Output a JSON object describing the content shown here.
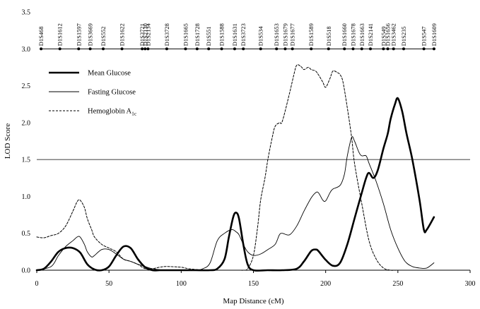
{
  "chart_data": {
    "type": "line",
    "title": "",
    "xlabel": "Map Distance (cM)",
    "ylabel": "LOD Score",
    "xlim": [
      0,
      300
    ],
    "ylim": [
      0,
      3.5
    ],
    "x_ticks": [
      0,
      50,
      100,
      150,
      200,
      250,
      300
    ],
    "y_ticks": [
      0.0,
      0.5,
      1.0,
      1.5,
      2.0,
      2.5,
      3.0,
      3.5
    ],
    "x_tick_labels": [
      "0",
      "50",
      "100",
      "150",
      "200",
      "250",
      "300"
    ],
    "y_tick_labels": [
      "0.0",
      "0.5",
      "1.0",
      "1.5",
      "2.0",
      "2.5",
      "3.0",
      "3.5"
    ],
    "threshold": 1.5,
    "grid": false,
    "legend_position": "top-left",
    "markers": [
      {
        "name": "D1S468",
        "pos": 3
      },
      {
        "name": "D1S1612",
        "pos": 16
      },
      {
        "name": "D1S1597",
        "pos": 29
      },
      {
        "name": "D1S3669",
        "pos": 37
      },
      {
        "name": "D1S552",
        "pos": 46
      },
      {
        "name": "D1S1622",
        "pos": 59
      },
      {
        "name": "D1S3721",
        "pos": 73
      },
      {
        "name": "D1S2130",
        "pos": 75
      },
      {
        "name": "D1S2134",
        "pos": 77
      },
      {
        "name": "D1S3728",
        "pos": 90
      },
      {
        "name": "D1S1665",
        "pos": 103
      },
      {
        "name": "D1S1728",
        "pos": 111
      },
      {
        "name": "D1S551",
        "pos": 119
      },
      {
        "name": "D1S1588",
        "pos": 128
      },
      {
        "name": "D1S1631",
        "pos": 137
      },
      {
        "name": "D1S3723",
        "pos": 143
      },
      {
        "name": "D1S534",
        "pos": 155
      },
      {
        "name": "D1S1653",
        "pos": 166
      },
      {
        "name": "D1S1679",
        "pos": 172
      },
      {
        "name": "D1S1677",
        "pos": 177
      },
      {
        "name": "D1S1589",
        "pos": 190
      },
      {
        "name": "D1S518",
        "pos": 202
      },
      {
        "name": "D1S1660",
        "pos": 213
      },
      {
        "name": "D1S1678",
        "pos": 219
      },
      {
        "name": "D1S1663",
        "pos": 225
      },
      {
        "name": "D1S2141",
        "pos": 231
      },
      {
        "name": "D1S549",
        "pos": 240
      },
      {
        "name": "D1S1656",
        "pos": 243
      },
      {
        "name": "D1S3462",
        "pos": 247
      },
      {
        "name": "D1S235",
        "pos": 254
      },
      {
        "name": "D1S547",
        "pos": 268
      },
      {
        "name": "D1S1609",
        "pos": 275
      }
    ],
    "marker_row_y": 3.0,
    "series": [
      {
        "name": "Mean Glucose",
        "style": "thick-solid",
        "x": [
          0,
          5,
          10,
          15,
          20,
          25,
          30,
          35,
          40,
          45,
          50,
          55,
          60,
          65,
          70,
          75,
          80,
          85,
          90,
          95,
          100,
          110,
          120,
          125,
          130,
          133,
          136,
          138,
          140,
          143,
          146,
          150,
          160,
          170,
          180,
          185,
          190,
          193,
          195,
          200,
          205,
          210,
          215,
          220,
          225,
          228,
          230,
          233,
          236,
          240,
          243,
          245,
          248,
          250,
          253,
          256,
          260,
          265,
          268,
          270,
          275
        ],
        "y": [
          0,
          0.02,
          0.12,
          0.25,
          0.3,
          0.3,
          0.24,
          0.08,
          0.01,
          0,
          0.05,
          0.2,
          0.32,
          0.3,
          0.15,
          0.04,
          0,
          0,
          0,
          0,
          0,
          0,
          0,
          0.02,
          0.15,
          0.45,
          0.72,
          0.78,
          0.7,
          0.35,
          0.08,
          0,
          0,
          0,
          0.02,
          0.12,
          0.26,
          0.28,
          0.26,
          0.14,
          0.06,
          0.1,
          0.35,
          0.7,
          1.05,
          1.25,
          1.32,
          1.25,
          1.35,
          1.65,
          1.85,
          2.05,
          2.25,
          2.33,
          2.15,
          1.85,
          1.5,
          0.95,
          0.55,
          0.55,
          0.72
        ]
      },
      {
        "name": "Fasting Glucose",
        "style": "thin-solid",
        "x": [
          0,
          10,
          15,
          20,
          25,
          28,
          30,
          33,
          35,
          38,
          40,
          45,
          50,
          55,
          60,
          65,
          70,
          75,
          80,
          90,
          100,
          110,
          115,
          120,
          125,
          130,
          135,
          138,
          140,
          143,
          146,
          150,
          155,
          160,
          165,
          168,
          170,
          175,
          180,
          185,
          190,
          193,
          195,
          198,
          200,
          203,
          205,
          210,
          213,
          215,
          218,
          220,
          223,
          225,
          228,
          230,
          235,
          240,
          245,
          250,
          255,
          260,
          265,
          270,
          275
        ],
        "y": [
          0,
          0.05,
          0.2,
          0.32,
          0.4,
          0.45,
          0.45,
          0.35,
          0.25,
          0.18,
          0.2,
          0.28,
          0.28,
          0.22,
          0.15,
          0.12,
          0.08,
          0.05,
          0.02,
          0,
          0,
          0,
          0.02,
          0.1,
          0.4,
          0.5,
          0.55,
          0.52,
          0.48,
          0.35,
          0.25,
          0.2,
          0.22,
          0.28,
          0.35,
          0.48,
          0.5,
          0.48,
          0.6,
          0.8,
          0.98,
          1.05,
          1.05,
          0.95,
          0.94,
          1.05,
          1.1,
          1.15,
          1.3,
          1.55,
          1.8,
          1.75,
          1.6,
          1.55,
          1.55,
          1.45,
          1.2,
          0.9,
          0.55,
          0.3,
          0.12,
          0.05,
          0.03,
          0.03,
          0.1
        ]
      },
      {
        "name": "Hemoglobin A1c",
        "style": "dashed",
        "x": [
          0,
          5,
          10,
          15,
          20,
          25,
          28,
          30,
          33,
          35,
          38,
          40,
          45,
          50,
          55,
          60,
          65,
          70,
          75,
          80,
          85,
          90,
          100,
          105,
          110,
          115,
          120,
          125,
          130,
          135,
          140,
          143,
          146,
          150,
          153,
          155,
          158,
          160,
          163,
          165,
          168,
          170,
          175,
          178,
          180,
          183,
          185,
          188,
          190,
          193,
          195,
          198,
          200,
          203,
          205,
          208,
          210,
          212,
          215,
          218,
          220,
          225,
          230,
          235,
          240,
          245,
          250,
          270
        ],
        "y": [
          0.45,
          0.44,
          0.47,
          0.5,
          0.6,
          0.8,
          0.93,
          0.95,
          0.85,
          0.7,
          0.55,
          0.45,
          0.35,
          0.3,
          0.25,
          0.15,
          0.12,
          0.08,
          0.02,
          0.02,
          0.04,
          0.05,
          0.04,
          0.02,
          0.01,
          0,
          0,
          0,
          0,
          0,
          0,
          0,
          0.02,
          0.2,
          0.6,
          0.95,
          1.25,
          1.5,
          1.8,
          1.95,
          2.0,
          2.02,
          2.4,
          2.65,
          2.78,
          2.76,
          2.72,
          2.75,
          2.72,
          2.7,
          2.65,
          2.55,
          2.48,
          2.6,
          2.7,
          2.68,
          2.65,
          2.55,
          2.2,
          1.8,
          1.45,
          0.9,
          0.4,
          0.15,
          0.03,
          0,
          0,
          0
        ]
      }
    ]
  }
}
